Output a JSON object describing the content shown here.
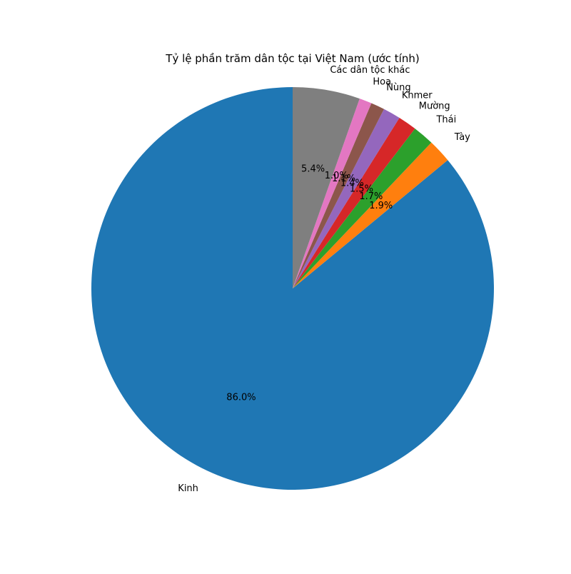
{
  "chart_data": {
    "type": "pie",
    "title": "Tỷ lệ phần trăm dân tộc tại Việt Nam (ước tính)",
    "start_angle_deg": 90,
    "direction": "counterclockwise",
    "categories": [
      "Kinh",
      "Tày",
      "Thái",
      "Mường",
      "Khmer",
      "Nùng",
      "Hoa",
      "Các dân tộc khác"
    ],
    "values": [
      86.0,
      1.9,
      1.7,
      1.5,
      1.4,
      1.1,
      1.0,
      5.4
    ],
    "percent_labels": [
      "86.0%",
      "1.9%",
      "1.7%",
      "1.5%",
      "1.4%",
      "1.1%",
      "1.0%",
      "5.4%"
    ],
    "colors": [
      "#1f77b4",
      "#ff7f0e",
      "#2ca02c",
      "#d62728",
      "#9467bd",
      "#8c564b",
      "#e377c2",
      "#7f7f7f"
    ],
    "legend": "none",
    "grid": false
  }
}
